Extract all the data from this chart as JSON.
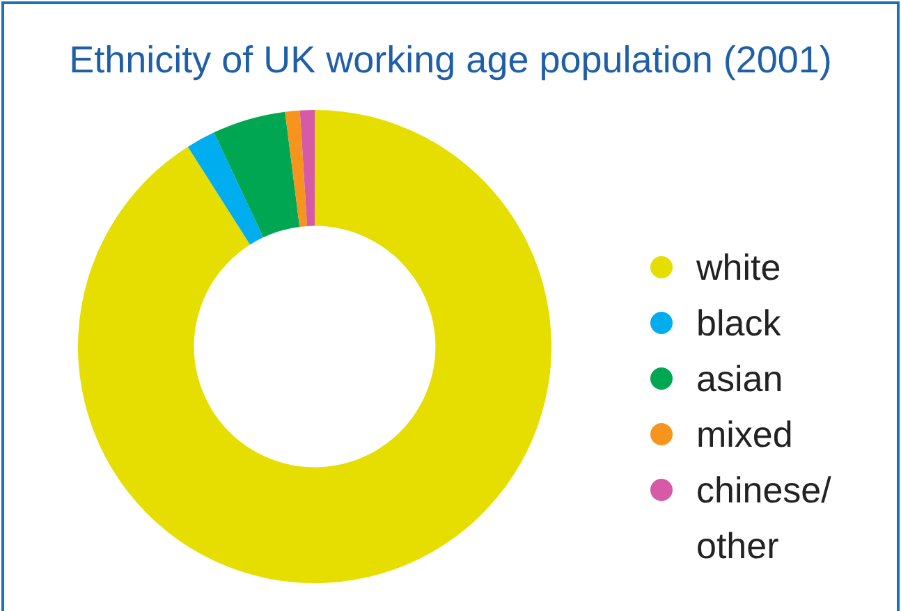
{
  "chart_data": {
    "type": "donut",
    "title": "Ethnicity of UK working age population (2001)",
    "categories": [
      "white",
      "black",
      "asian",
      "mixed",
      "chinese/other"
    ],
    "values": [
      91,
      2,
      5,
      1,
      1
    ],
    "colors": [
      "#e6de00",
      "#00aeef",
      "#00a651",
      "#f7941d",
      "#d65aa5"
    ],
    "legend": "right"
  }
}
